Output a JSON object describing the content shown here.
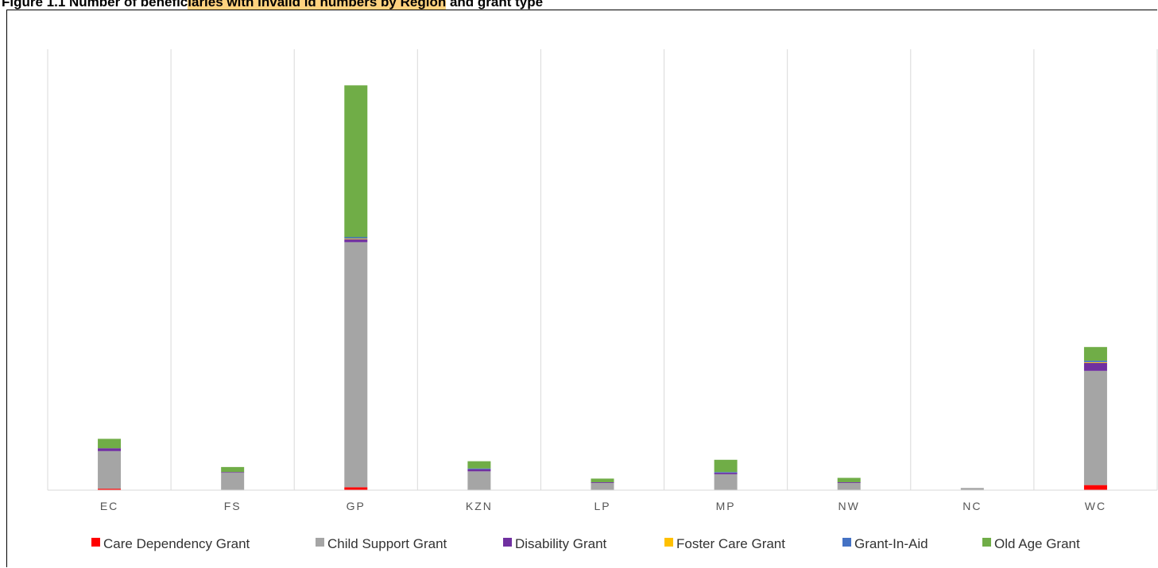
{
  "title": {
    "part1": "Figure 1.1 Number of benefic",
    "part2": "iaries with invalid id numbers by Region",
    "part3": " and grant type"
  },
  "chart_data": {
    "type": "bar",
    "stacked": true,
    "title": "Figure 1.1 Number of beneficiaries with invalid id numbers by Region and grant type",
    "xlabel": "",
    "ylabel": "",
    "grid": "vertical",
    "legend_position": "bottom",
    "ylim": [
      0,
      560
    ],
    "categories": [
      "EC",
      "FS",
      "GP",
      "KZN",
      "LP",
      "MP",
      "NW",
      "NC",
      "WC"
    ],
    "series": [
      {
        "name": "Care Dependency Grant",
        "color": "#ff0000",
        "values": [
          2,
          0,
          4,
          0,
          0,
          0,
          0,
          0,
          7
        ]
      },
      {
        "name": "Child Support Grant",
        "color": "#a5a5a5",
        "values": [
          52,
          24,
          339,
          26,
          10,
          22,
          10,
          3,
          158
        ]
      },
      {
        "name": "Disability Grant",
        "color": "#7030a0",
        "values": [
          4,
          1,
          4,
          3,
          1,
          2,
          1,
          0,
          11
        ]
      },
      {
        "name": "Foster Care Grant",
        "color": "#ffc000",
        "values": [
          0,
          0,
          1,
          0,
          0,
          0,
          0,
          0,
          1
        ]
      },
      {
        "name": "Grant-In-Aid",
        "color": "#4472c4",
        "values": [
          0,
          0,
          2,
          1,
          0,
          1,
          0,
          0,
          2
        ]
      },
      {
        "name": "Old Age Grant",
        "color": "#70ad47",
        "values": [
          13,
          7,
          210,
          10,
          5,
          17,
          6,
          0,
          19
        ]
      }
    ]
  }
}
